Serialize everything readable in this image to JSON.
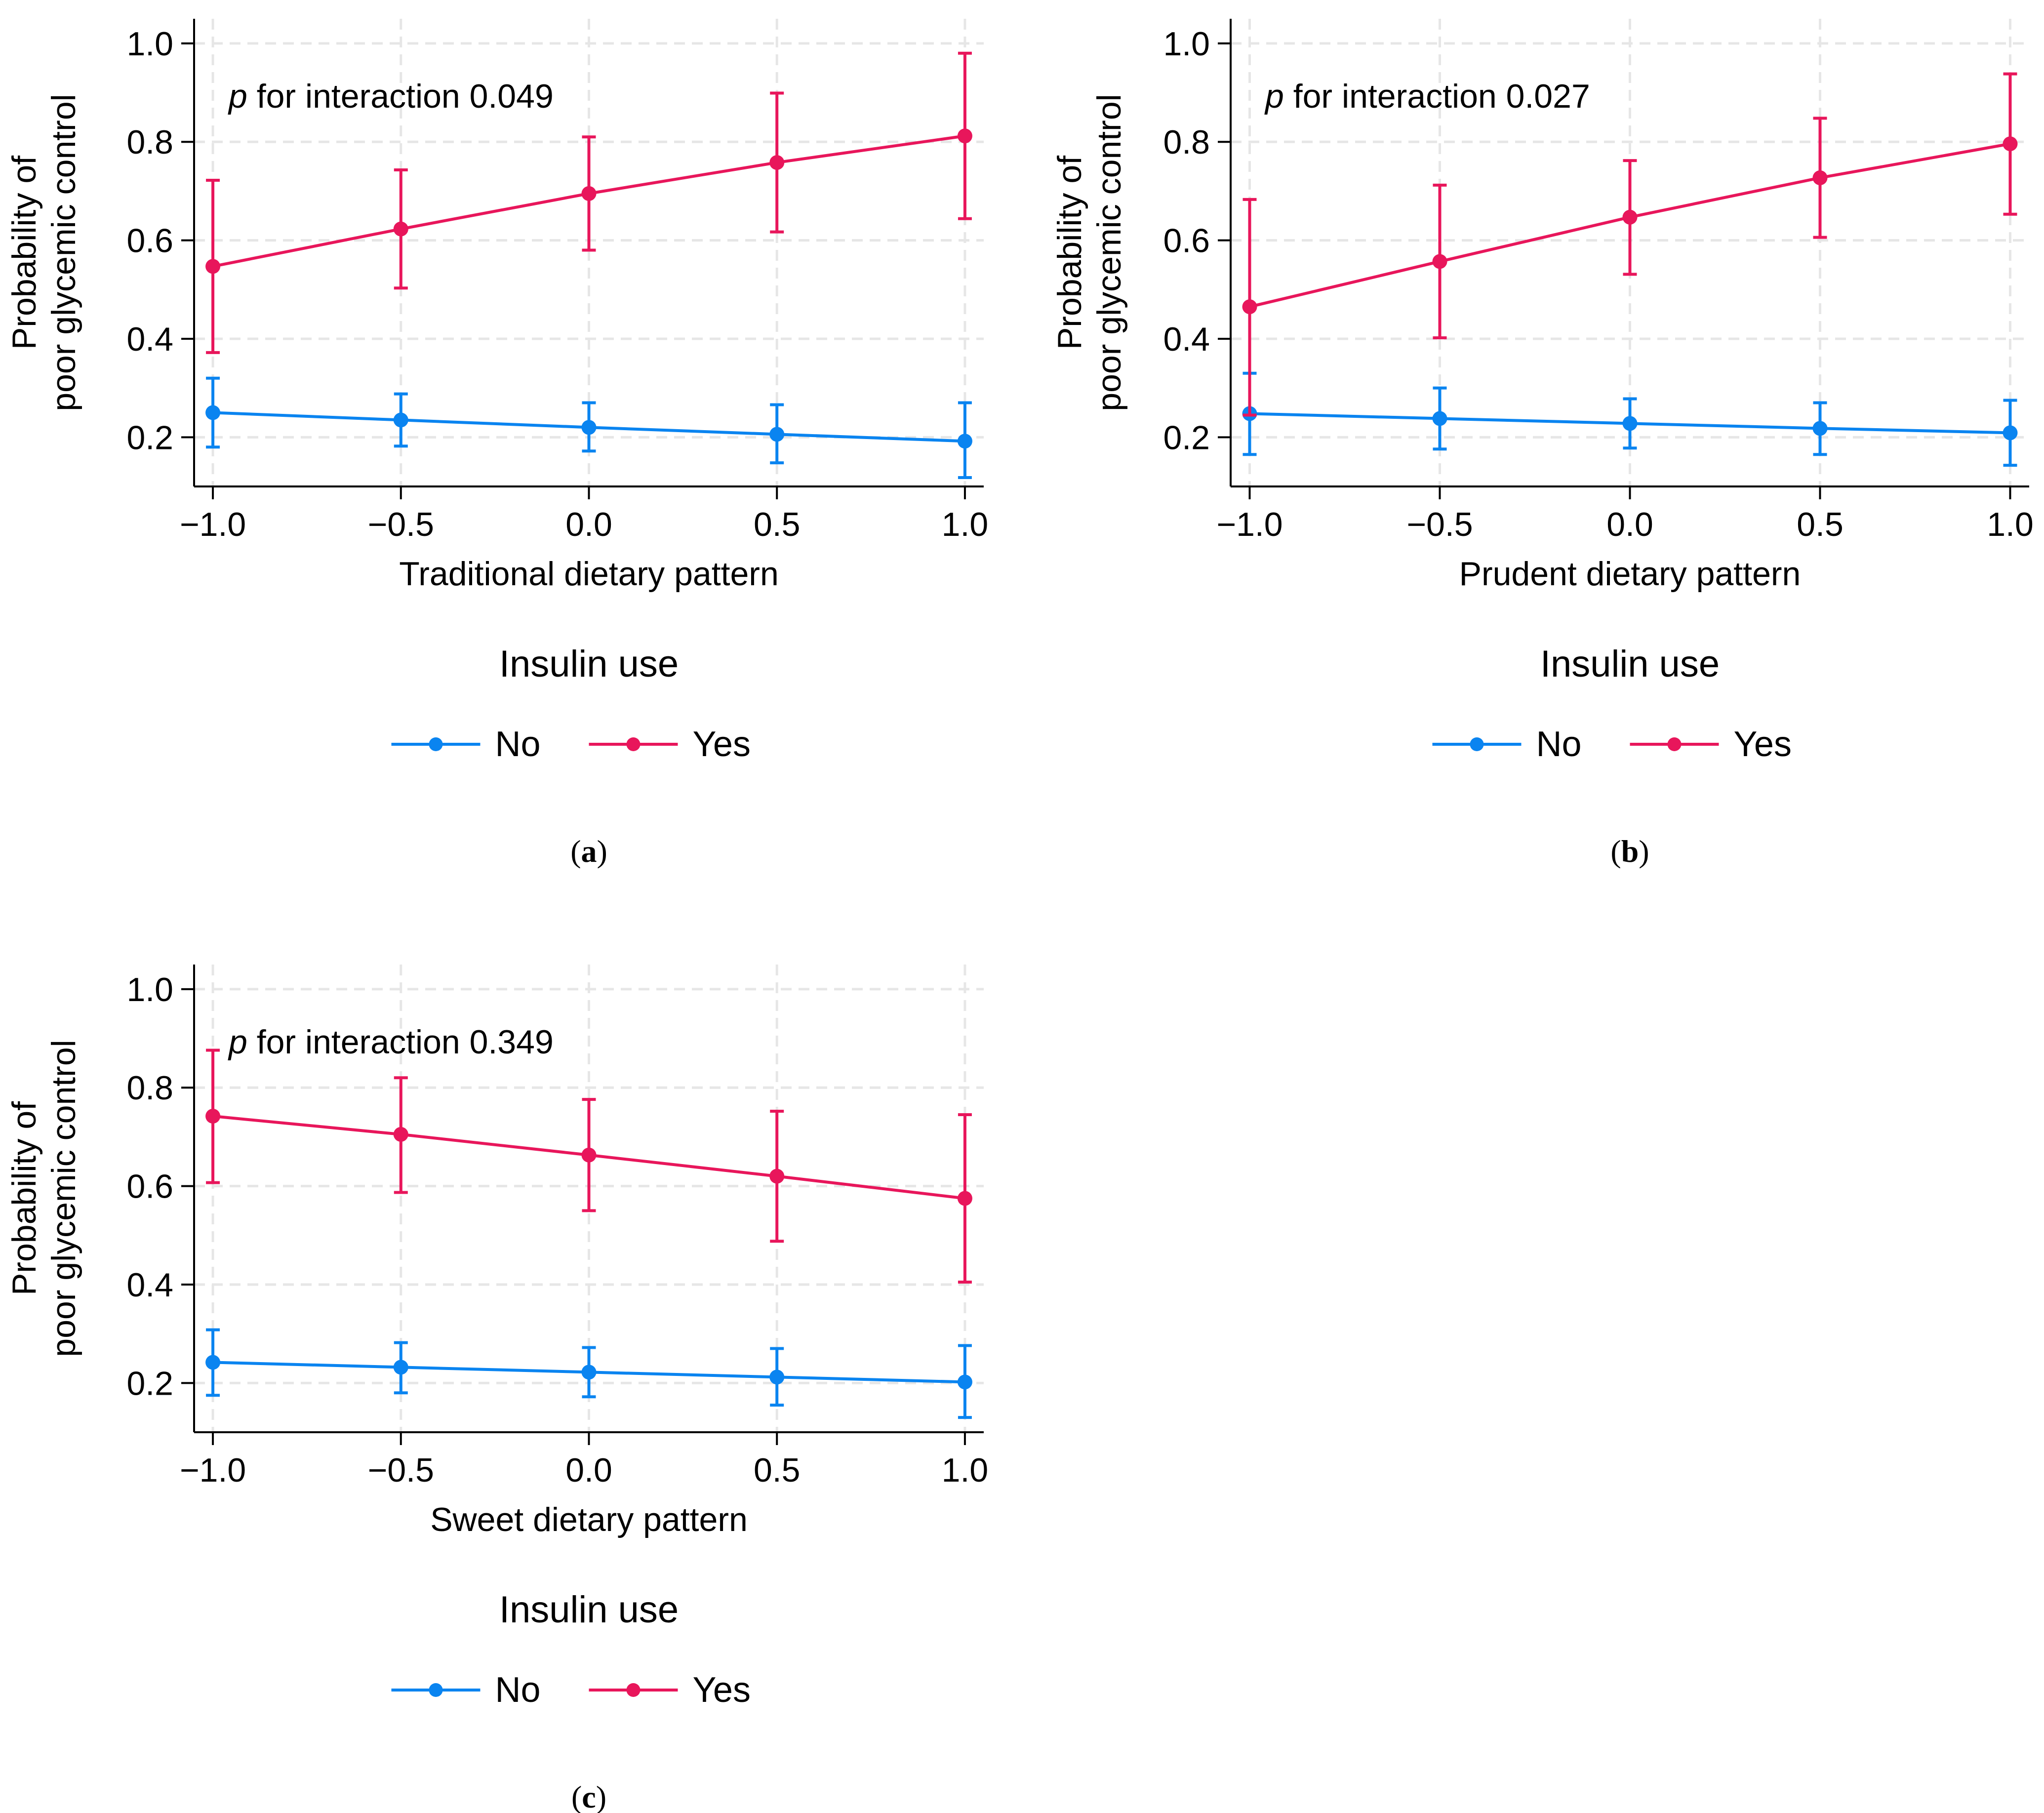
{
  "colors": {
    "no": "#0a84f0",
    "yes": "#e8165b",
    "grid": "#e6e6e6",
    "axis": "#000000"
  },
  "legend": {
    "title": "Insulin use",
    "items": [
      "No",
      "Yes"
    ]
  },
  "chart_data": [
    {
      "type": "line",
      "panel_label": "(a)",
      "panel_letter": "a",
      "annotation": {
        "p_symbol": "p",
        "text": " for interaction 0.049"
      },
      "xlabel": "Traditional dietary pattern",
      "ylabel": [
        "Probability of",
        "poor glycemic control"
      ],
      "x": [
        -1.0,
        -0.5,
        0.0,
        0.5,
        1.0
      ],
      "x_tick_labels": [
        "−1.0",
        "−0.5",
        "0.0",
        "0.5",
        "1.0"
      ],
      "y_ticks": [
        0.2,
        0.4,
        0.6,
        0.8,
        1.0
      ],
      "y_tick_labels": [
        "0.2",
        "0.4",
        "0.6",
        "0.8",
        "1.0"
      ],
      "xlim": [
        -1.05,
        1.05
      ],
      "ylim": [
        0.1,
        1.05
      ],
      "grid": true,
      "series": [
        {
          "name": "No",
          "values": [
            0.25,
            0.235,
            0.22,
            0.206,
            0.192
          ],
          "lower": [
            0.18,
            0.182,
            0.172,
            0.148,
            0.118
          ],
          "upper": [
            0.32,
            0.288,
            0.27,
            0.266,
            0.27
          ]
        },
        {
          "name": "Yes",
          "values": [
            0.547,
            0.623,
            0.695,
            0.758,
            0.812
          ],
          "lower": [
            0.372,
            0.503,
            0.58,
            0.617,
            0.644
          ],
          "upper": [
            0.722,
            0.743,
            0.81,
            0.899,
            0.98
          ]
        }
      ]
    },
    {
      "type": "line",
      "panel_label": "(b)",
      "panel_letter": "b",
      "annotation": {
        "p_symbol": "p",
        "text": " for interaction 0.027"
      },
      "xlabel": "Prudent dietary pattern",
      "ylabel": [
        "Probability of",
        "poor glycemic control"
      ],
      "x": [
        -1.0,
        -0.5,
        0.0,
        0.5,
        1.0
      ],
      "x_tick_labels": [
        "−1.0",
        "−0.5",
        "0.0",
        "0.5",
        "1.0"
      ],
      "y_ticks": [
        0.2,
        0.4,
        0.6,
        0.8,
        1.0
      ],
      "y_tick_labels": [
        "0.2",
        "0.4",
        "0.6",
        "0.8",
        "1.0"
      ],
      "xlim": [
        -1.05,
        1.05
      ],
      "ylim": [
        0.1,
        1.05
      ],
      "grid": true,
      "series": [
        {
          "name": "No",
          "values": [
            0.248,
            0.238,
            0.228,
            0.218,
            0.209
          ],
          "lower": [
            0.165,
            0.176,
            0.178,
            0.165,
            0.143
          ],
          "upper": [
            0.33,
            0.3,
            0.278,
            0.27,
            0.275
          ]
        },
        {
          "name": "Yes",
          "values": [
            0.465,
            0.557,
            0.647,
            0.727,
            0.796
          ],
          "lower": [
            0.245,
            0.402,
            0.531,
            0.606,
            0.653
          ],
          "upper": [
            0.683,
            0.712,
            0.762,
            0.848,
            0.938
          ]
        }
      ]
    },
    {
      "type": "line",
      "panel_label": "(c)",
      "panel_letter": "c",
      "annotation": {
        "p_symbol": "p",
        "text": " for interaction 0.349"
      },
      "xlabel": "Sweet dietary pattern",
      "ylabel": [
        "Probability of",
        "poor glycemic control"
      ],
      "x": [
        -1.0,
        -0.5,
        0.0,
        0.5,
        1.0
      ],
      "x_tick_labels": [
        "−1.0",
        "−0.5",
        "0.0",
        "0.5",
        "1.0"
      ],
      "y_ticks": [
        0.2,
        0.4,
        0.6,
        0.8,
        1.0
      ],
      "y_tick_labels": [
        "0.2",
        "0.4",
        "0.6",
        "0.8",
        "1.0"
      ],
      "xlim": [
        -1.05,
        1.05
      ],
      "ylim": [
        0.1,
        1.05
      ],
      "grid": true,
      "series": [
        {
          "name": "No",
          "values": [
            0.242,
            0.232,
            0.222,
            0.212,
            0.202
          ],
          "lower": [
            0.175,
            0.18,
            0.172,
            0.155,
            0.13
          ],
          "upper": [
            0.308,
            0.282,
            0.272,
            0.27,
            0.276
          ]
        },
        {
          "name": "Yes",
          "values": [
            0.742,
            0.705,
            0.663,
            0.62,
            0.575
          ],
          "lower": [
            0.607,
            0.587,
            0.55,
            0.488,
            0.405
          ],
          "upper": [
            0.876,
            0.82,
            0.776,
            0.752,
            0.745
          ]
        }
      ]
    }
  ]
}
